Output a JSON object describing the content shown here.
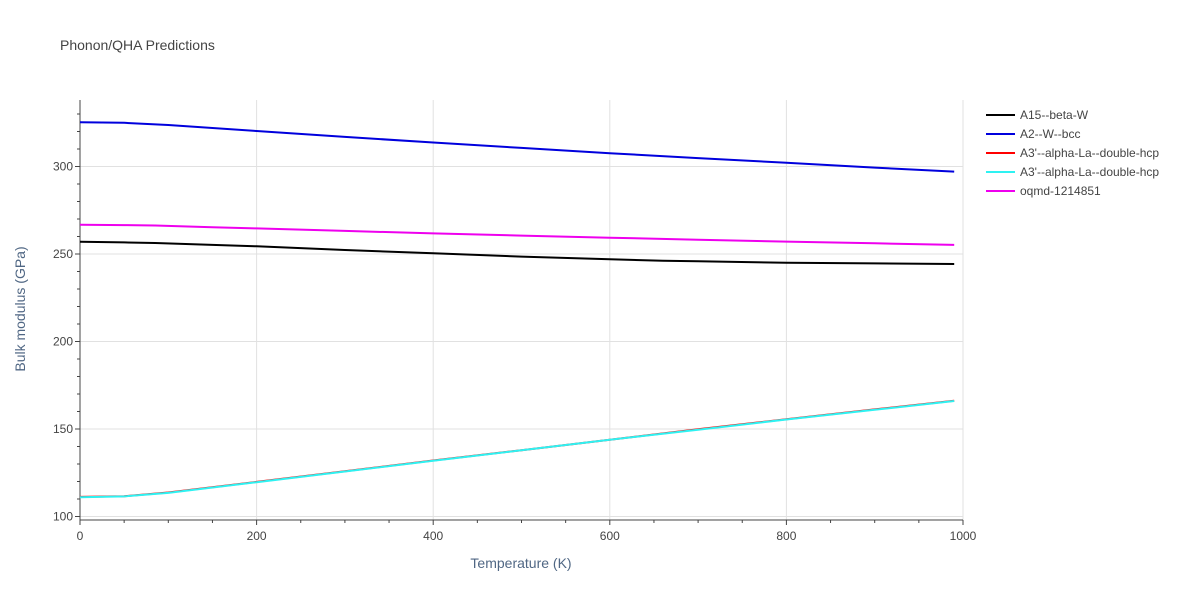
{
  "chart_data": {
    "type": "line",
    "title": "Phonon/QHA Predictions",
    "xlabel": "Temperature (K)",
    "ylabel": "Bulk modulus (GPa)",
    "xlim": [
      0,
      1000
    ],
    "ylim": [
      98,
      338
    ],
    "xticks": [
      0,
      200,
      400,
      600,
      800,
      1000
    ],
    "yticks": [
      100,
      150,
      200,
      250,
      300
    ],
    "grid": true,
    "legend_position": "right",
    "series": [
      {
        "name": "A15--beta-W",
        "color": "#000000",
        "x": [
          0,
          50,
          85,
          150,
          200,
          300,
          400,
          500,
          600,
          660,
          700,
          800,
          900,
          990
        ],
        "y": [
          257,
          256.6,
          256.3,
          255.2,
          254.4,
          252.3,
          250.4,
          248.5,
          247.0,
          246.2,
          245.9,
          245.0,
          244.6,
          244.3
        ]
      },
      {
        "name": "A2--W--bcc",
        "color": "#0000dd",
        "x": [
          0,
          50,
          100,
          200,
          300,
          400,
          500,
          600,
          700,
          800,
          900,
          990
        ],
        "y": [
          325.3,
          325.0,
          323.7,
          320.3,
          316.9,
          313.7,
          310.6,
          307.6,
          304.8,
          302.1,
          299.4,
          297.1
        ]
      },
      {
        "name": "A3'--alpha-La--double-hcp",
        "color": "#ff0000",
        "x": [
          0,
          50,
          100,
          200,
          300,
          400,
          500,
          600,
          700,
          800,
          900,
          990
        ],
        "y": [
          111.2,
          111.6,
          113.7,
          119.8,
          125.9,
          132.0,
          137.9,
          143.9,
          149.8,
          155.6,
          161.2,
          166.1
        ]
      },
      {
        "name": "A3'--alpha-La--double-hcp",
        "color": "#2ef2f2",
        "x": [
          0,
          50,
          100,
          200,
          300,
          400,
          500,
          600,
          700,
          800,
          900,
          990
        ],
        "y": [
          111.0,
          111.5,
          113.5,
          119.6,
          125.7,
          131.8,
          137.8,
          143.8,
          149.6,
          155.4,
          161.0,
          166.0
        ]
      },
      {
        "name": "oqmd-1214851",
        "color": "#ee00ee",
        "x": [
          0,
          50,
          85,
          150,
          200,
          300,
          400,
          500,
          600,
          700,
          800,
          900,
          990
        ],
        "y": [
          266.7,
          266.5,
          266.3,
          265.3,
          264.6,
          263.2,
          261.8,
          260.5,
          259.3,
          258.2,
          257.1,
          256.1,
          255.2
        ]
      }
    ]
  }
}
